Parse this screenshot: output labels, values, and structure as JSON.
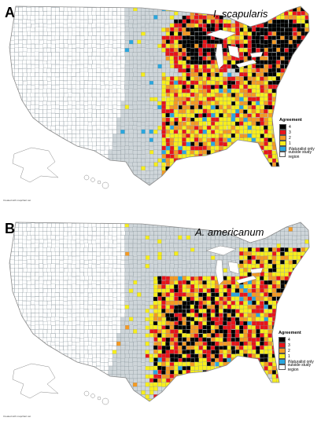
{
  "panels": [
    {
      "letter": "A",
      "species": "I. scapularis",
      "hotspot_region": "northeast",
      "credit": "Created with mapchart.net"
    },
    {
      "letter": "B",
      "species": "A. americanum",
      "hotspot_region": "southeast",
      "credit": "Created with mapchart.net"
    }
  ],
  "legend": {
    "title": "Agreement",
    "items": [
      {
        "label": "4",
        "color": "#000000"
      },
      {
        "label": "3",
        "color": "#e8141a"
      },
      {
        "label": "2",
        "color": "#f59a22"
      },
      {
        "label": "1",
        "color": "#f7ee1c"
      },
      {
        "label": "iNaturalist only",
        "color": "#2aa7df"
      },
      {
        "label": "outside study region",
        "color": "#ffffff"
      }
    ]
  },
  "colors": {
    "study_region": "#cfd6da",
    "county_line": "#7e8b92",
    "outline": "#8a8a8a"
  }
}
